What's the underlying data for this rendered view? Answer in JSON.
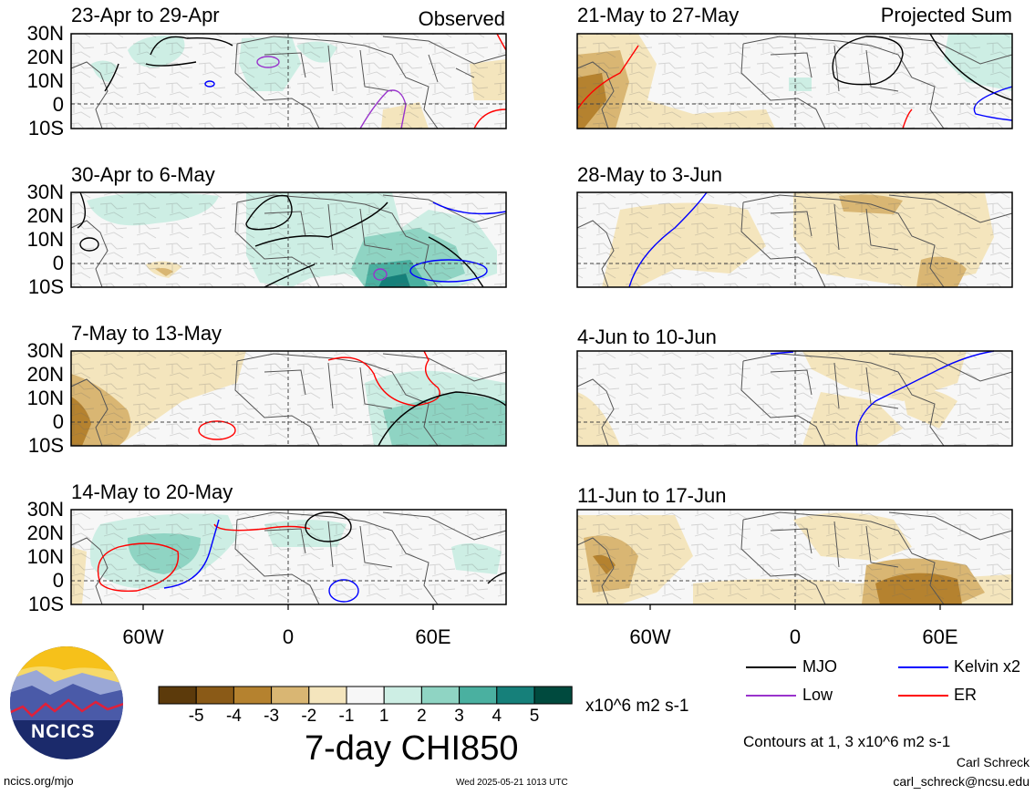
{
  "panels": [
    {
      "id": "p1",
      "title": "23-Apr to 29-Apr",
      "side": "Observed"
    },
    {
      "id": "p2",
      "title": "30-Apr to 6-May",
      "side": ""
    },
    {
      "id": "p3",
      "title": "7-May to 13-May",
      "side": ""
    },
    {
      "id": "p4",
      "title": "14-May to 20-May",
      "side": ""
    },
    {
      "id": "p5",
      "title": "21-May to 27-May",
      "side": "Projected Sum"
    },
    {
      "id": "p6",
      "title": "28-May to 3-Jun",
      "side": ""
    },
    {
      "id": "p7",
      "title": "4-Jun to 10-Jun",
      "side": ""
    },
    {
      "id": "p8",
      "title": "11-Jun to 17-Jun",
      "side": ""
    }
  ],
  "lat_labels": [
    "30N",
    "20N",
    "10N",
    "0",
    "10S"
  ],
  "lon_labels": [
    "60W",
    "0",
    "60E"
  ],
  "colorbar": {
    "labels": [
      "-5",
      "-4",
      "-3",
      "-2",
      "-1",
      "1",
      "2",
      "3",
      "4",
      "5"
    ],
    "colors": [
      "#5c3a0b",
      "#8a5a17",
      "#b5822f",
      "#d9b673",
      "#f4e5bd",
      "#f7f7f7",
      "#cdeee4",
      "#8fd4c3",
      "#4ab0a0",
      "#16807a",
      "#004a3e"
    ],
    "units": "x10^6 m2 s-1",
    "title": "7-day CHI850"
  },
  "legend": [
    {
      "label": "MJO",
      "color": "#000000"
    },
    {
      "label": "Low",
      "color": "#9933cc"
    },
    {
      "label": "Kelvin x2",
      "color": "#0000ff"
    },
    {
      "label": "ER",
      "color": "#ff0000"
    }
  ],
  "contours_note": "Contours at 1, 3 x10^6 m2 s-1",
  "author": "Carl Schreck",
  "email": "carl_schreck@ncsu.edu",
  "site": "ncics.org/mjo",
  "timestamp": "Wed 2025-05-21 1013 UTC",
  "logo_text": "NCICS"
}
